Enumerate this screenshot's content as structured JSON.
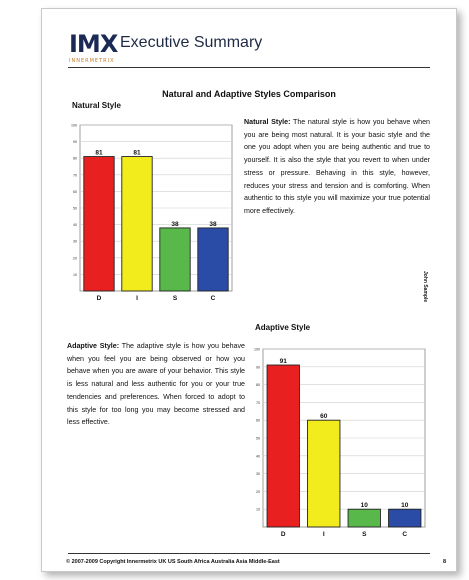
{
  "header": {
    "logo_text": "IMX",
    "logo_subtext": "INNERMETRIX",
    "title": "Executive Summary"
  },
  "document_title": "Natural and Adaptive Styles Comparison",
  "natural": {
    "label": "Natural Style",
    "lead": "Natural Style:",
    "body": " The natural style is how you behave when you are being most natural. It is your basic style and the one you adopt when you are being authentic and true to yourself. It is also the style that you revert to when under stress or pressure. Behaving in this style, however, reduces your stress and tension and is comforting. When authentic to this style you will maximize your true potential more effectively."
  },
  "adaptive": {
    "label": "Adaptive Style",
    "lead": "Adaptive Style:",
    "body": " The adaptive style is how you behave when you feel you are being observed or how you behave when you are aware of your behavior. This style is less natural and less authentic for you or your true tendencies and preferences. When forced to adopt to this style for too long you may become stressed and less effective."
  },
  "side_text": "John Sample",
  "footer": {
    "copyright": "© 2007-2009 Copyright Innermetrix UK US South Africa Australia Asia Middle-East",
    "page": "8"
  },
  "colors": {
    "D": "#e8201f",
    "I": "#f3ec1c",
    "S": "#58b84a",
    "C": "#2a4ba6"
  },
  "chart_data": [
    {
      "type": "bar",
      "title": "Natural Style",
      "categories": [
        "D",
        "I",
        "S",
        "C"
      ],
      "values": [
        81,
        81,
        38,
        38
      ],
      "ylim": [
        0,
        100
      ],
      "yticks": [
        10,
        20,
        30,
        40,
        50,
        60,
        70,
        80,
        90,
        100
      ],
      "grid": true
    },
    {
      "type": "bar",
      "title": "Adaptive Style",
      "categories": [
        "D",
        "I",
        "S",
        "C"
      ],
      "values": [
        91,
        60,
        10,
        10
      ],
      "ylim": [
        0,
        100
      ],
      "yticks": [
        10,
        20,
        30,
        40,
        50,
        60,
        70,
        80,
        90,
        100
      ],
      "grid": true
    }
  ]
}
